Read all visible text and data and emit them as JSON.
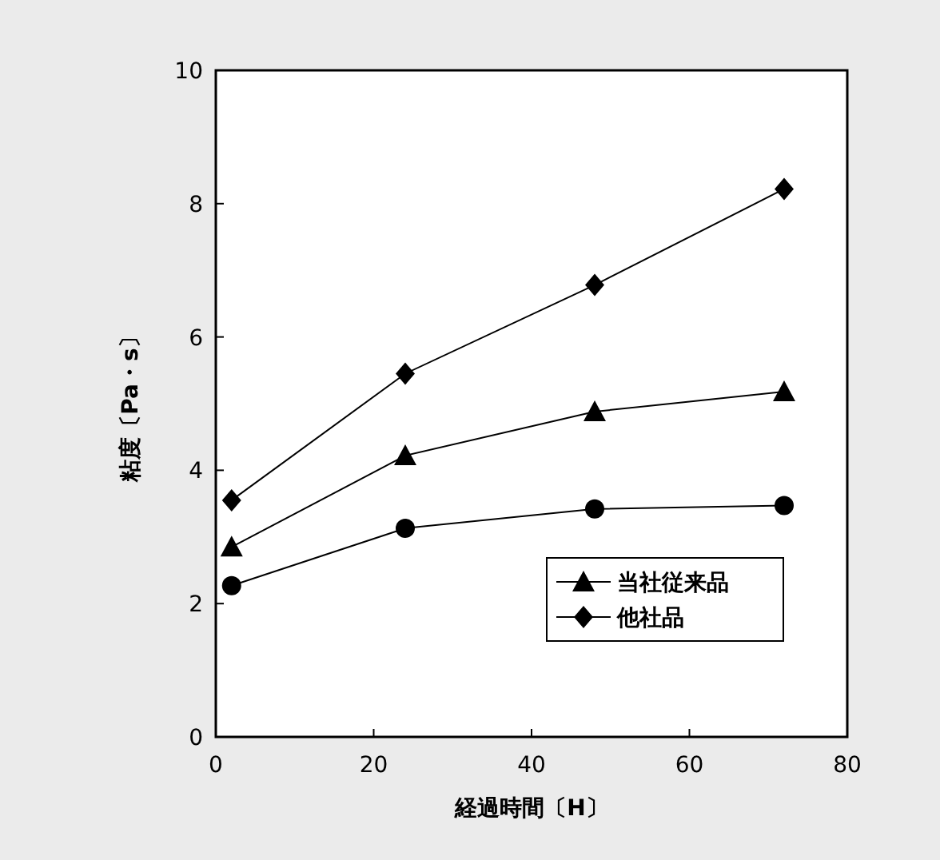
{
  "chart_data": {
    "type": "line",
    "xlabel": "経過時間〔H〕",
    "ylabel": "粘度〔Pa・s〕",
    "xlim": [
      0,
      80
    ],
    "ylim": [
      0,
      10
    ],
    "xticks": [
      0,
      20,
      40,
      60,
      80
    ],
    "yticks": [
      0,
      2,
      4,
      6,
      8,
      10
    ],
    "grid": false,
    "legend": "bottom right",
    "line_style": "solid",
    "series": [
      {
        "color": "#000000",
        "marker": "circle",
        "x": [
          2,
          24,
          48,
          72
        ],
        "values": [
          2.27,
          3.13,
          3.42,
          3.47
        ]
      },
      {
        "name": "当社従来品",
        "color": "#000000",
        "marker": "triangle",
        "x": [
          2,
          24,
          48,
          72
        ],
        "values": [
          2.85,
          4.22,
          4.88,
          5.18
        ]
      },
      {
        "name": "他社品",
        "color": "#000000",
        "marker": "diamond",
        "x": [
          2,
          24,
          48,
          72
        ],
        "values": [
          3.55,
          5.45,
          6.78,
          8.22
        ]
      }
    ]
  }
}
